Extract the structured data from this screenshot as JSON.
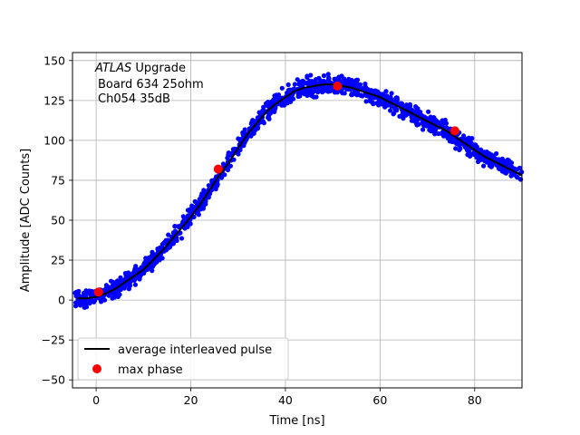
{
  "chart_data": {
    "type": "scatter",
    "title": "",
    "xlabel": "Time [ns]",
    "ylabel": "Amplitude [ADC Counts]",
    "xlim": [
      -5,
      90
    ],
    "ylim": [
      -55,
      155
    ],
    "xticks": [
      0,
      20,
      40,
      60,
      80
    ],
    "yticks": [
      -50,
      -25,
      0,
      25,
      50,
      75,
      100,
      125,
      150
    ],
    "grid": true,
    "legend_position": "bottom-left",
    "annotation": {
      "line1_italic": "ATLAS",
      "line1_rest": " Upgrade",
      "line2": "Board 634 25ohm",
      "line3": "Ch054 35dB"
    },
    "series": [
      {
        "kind": "samples",
        "color": "#0000ff",
        "marker": "dot",
        "x": [
          -4,
          -2,
          0,
          2,
          4,
          6,
          8,
          10,
          12,
          14,
          16,
          18,
          20,
          22,
          24,
          26,
          28,
          30,
          32,
          34,
          36,
          38,
          40,
          42,
          44,
          46,
          48,
          50,
          52,
          54,
          56,
          58,
          60,
          62,
          64,
          66,
          68,
          70,
          72,
          74,
          76,
          78,
          80,
          82,
          84,
          86,
          88,
          90
        ],
        "y": [
          1,
          1,
          2,
          4,
          7,
          11,
          15,
          19,
          25,
          31,
          38,
          45,
          52,
          60,
          69,
          78,
          86,
          95,
          104,
          111,
          118,
          123,
          127,
          131,
          133,
          134,
          135,
          135,
          134,
          133,
          131,
          129,
          127,
          124,
          121,
          118,
          115,
          112,
          109,
          106,
          102,
          98,
          94,
          90,
          87,
          84,
          81,
          78
        ]
      },
      {
        "name": "average interleaved pulse",
        "kind": "line",
        "color": "#000000",
        "x": [
          -4,
          -2,
          0,
          2,
          4,
          6,
          8,
          10,
          12,
          14,
          16,
          18,
          20,
          22,
          24,
          26,
          28,
          30,
          32,
          34,
          36,
          38,
          40,
          42,
          44,
          46,
          48,
          50,
          52,
          54,
          56,
          58,
          60,
          62,
          64,
          66,
          68,
          70,
          72,
          74,
          76,
          78,
          80,
          82,
          84,
          86,
          88,
          90
        ],
        "y": [
          1,
          1,
          2,
          4,
          7,
          11,
          15,
          19,
          25,
          31,
          38,
          45,
          52,
          60,
          69,
          78,
          86,
          95,
          104,
          111,
          118,
          123,
          127,
          131,
          133,
          134,
          135,
          135,
          134,
          133,
          131,
          129,
          127,
          124,
          121,
          118,
          115,
          112,
          109,
          106,
          102,
          98,
          94,
          90,
          87,
          84,
          81,
          78
        ]
      },
      {
        "name": "max phase",
        "kind": "markers",
        "color": "#ff0000",
        "x": [
          0.5,
          25.8,
          51,
          75.8
        ],
        "y": [
          5,
          82,
          134,
          106
        ]
      }
    ]
  }
}
